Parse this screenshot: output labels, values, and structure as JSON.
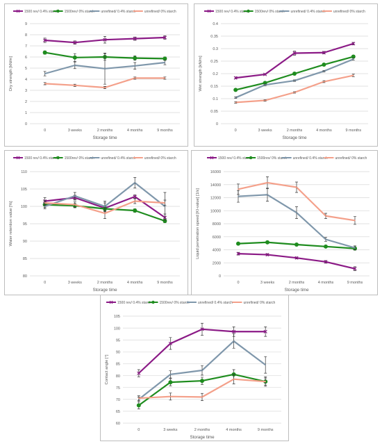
{
  "chart_data": [
    {
      "type": "line",
      "categories": [
        "0",
        "3 weeks",
        "2 months",
        "4 months",
        "9 months"
      ],
      "xlabel": "Storage time",
      "ylabel": "Dry strength [kN/m]",
      "ylim": [
        0,
        9
      ],
      "yticks": [
        "0",
        "1",
        "2",
        "3",
        "4",
        "5",
        "6",
        "7",
        "8",
        "9"
      ],
      "grid": true,
      "legend": "top",
      "series": [
        {
          "name": "1500 rev/ 0.4% starch",
          "color": "#8b1a86",
          "marker": "x",
          "values": [
            7.5,
            7.3,
            7.55,
            7.65,
            7.75
          ],
          "errors": [
            0.2,
            0.15,
            0.3,
            0.15,
            0.15
          ]
        },
        {
          "name": "1500rev/ 0% starch",
          "color": "#1e8c1e",
          "marker": "circle",
          "values": [
            6.4,
            5.95,
            6.0,
            5.9,
            5.85
          ],
          "errors": [
            0.15,
            0.35,
            0.3,
            0.2,
            0.15
          ]
        },
        {
          "name": "unrefined/ 0.4% starch",
          "color": "#7f97ab",
          "marker": "none",
          "values": [
            4.5,
            5.25,
            4.95,
            5.2,
            5.5
          ],
          "errors": [
            0.2,
            0.3,
            1.4,
            0.3,
            0.2
          ]
        },
        {
          "name": "unrefined/ 0% starch",
          "color": "#f4a08a",
          "marker": "none",
          "values": [
            3.6,
            3.45,
            3.25,
            4.1,
            4.1
          ],
          "errors": [
            0.1,
            0.1,
            0.1,
            0.1,
            0.1
          ]
        }
      ]
    },
    {
      "type": "line",
      "categories": [
        "0",
        "3 weeks",
        "2 months",
        "4 months",
        "9 months"
      ],
      "xlabel": "Storage time",
      "ylabel": "Wet strength [kN/m]",
      "ylim": [
        0,
        0.4
      ],
      "yticks": [
        "0",
        "0.05",
        "0.1",
        "0.15",
        "0.2",
        "0.25",
        "0.3",
        "0.35",
        "0.4"
      ],
      "grid": true,
      "legend": "top",
      "series": [
        {
          "name": "1500 rev/ 0.4% starch",
          "color": "#8b1a86",
          "marker": "x",
          "values": [
            0.183,
            0.197,
            0.282,
            0.284,
            0.32
          ],
          "errors": [
            0.004,
            0.003,
            0.008,
            0.005,
            0.005
          ]
        },
        {
          "name": "1500rev/ 0% starch",
          "color": "#1e8c1e",
          "marker": "circle",
          "values": [
            0.135,
            0.163,
            0.2,
            0.236,
            0.268
          ],
          "errors": [
            0.003,
            0.003,
            0.005,
            0.003,
            0.006
          ]
        },
        {
          "name": "unrefined/ 0.4% starch",
          "color": "#7f97ab",
          "marker": "none",
          "values": [
            0.104,
            0.155,
            0.172,
            0.21,
            0.258
          ],
          "errors": [
            0.003,
            0.003,
            0.003,
            0.003,
            0.004
          ]
        },
        {
          "name": "unrefined/ 0% starch",
          "color": "#f4a08a",
          "marker": "none",
          "values": [
            0.085,
            0.093,
            0.125,
            0.168,
            0.193
          ],
          "errors": [
            0.003,
            0.003,
            0.003,
            0.004,
            0.005
          ]
        }
      ]
    },
    {
      "type": "line",
      "categories": [
        "0",
        "3 weeks",
        "2 months",
        "4 months",
        "9 months"
      ],
      "xlabel": "Storage time",
      "ylabel": "Water retention value [%]",
      "ylim": [
        80,
        110
      ],
      "yticks": [
        "80",
        "85",
        "90",
        "95",
        "100",
        "105",
        "110"
      ],
      "grid": true,
      "legend": "top",
      "series": [
        {
          "name": "1500 rev/ 0.4% starch",
          "color": "#8b1a86",
          "marker": "x",
          "values": [
            101.5,
            102.5,
            99.5,
            102.8,
            96.8
          ],
          "errors": [
            1.0,
            0.7,
            1.5,
            0.5,
            1.0
          ]
        },
        {
          "name": "1500rev/ 0% starch",
          "color": "#1e8c1e",
          "marker": "circle",
          "values": [
            100.5,
            100.2,
            99.3,
            98.8,
            95.8
          ],
          "errors": [
            0.8,
            0.6,
            0.6,
            0.5,
            0.5
          ]
        },
        {
          "name": "unrefined/ 0.4% starch",
          "color": "#7f97ab",
          "marker": "none",
          "values": [
            100.0,
            103.0,
            100.0,
            106.8,
            100.0
          ],
          "errors": [
            0.7,
            1.0,
            1.5,
            1.5,
            4.0
          ]
        },
        {
          "name": "unrefined/ 0% starch",
          "color": "#f4a08a",
          "marker": "none",
          "values": [
            101.0,
            100.5,
            98.0,
            101.5,
            101.0
          ],
          "errors": [
            0.7,
            0.8,
            1.5,
            0.7,
            0.8
          ]
        }
      ]
    },
    {
      "type": "line",
      "categories": [
        "0",
        "3 weeks",
        "2 months",
        "4 months",
        "9 months"
      ],
      "xlabel": "Storage time",
      "ylabel": "Liquid penetration speed [Kl-value] [1/s]",
      "ylim": [
        0,
        16000
      ],
      "yticks": [
        "0",
        "2000",
        "4000",
        "6000",
        "8000",
        "10000",
        "12000",
        "14000",
        "16000"
      ],
      "grid": true,
      "legend": "top",
      "series": [
        {
          "name": "1500 rev/ 0.4% starch",
          "color": "#8b1a86",
          "marker": "x",
          "values": [
            3400,
            3250,
            2750,
            2150,
            1100
          ],
          "errors": [
            200,
            150,
            150,
            200,
            300
          ]
        },
        {
          "name": "1500rev/ 0% starch",
          "color": "#1e8c1e",
          "marker": "circle",
          "values": [
            4950,
            5150,
            4800,
            4500,
            4200
          ],
          "errors": [
            150,
            150,
            150,
            150,
            250
          ]
        },
        {
          "name": "unrefined/ 0.4% starch",
          "color": "#7f97ab",
          "marker": "none",
          "values": [
            12200,
            12450,
            9700,
            5600,
            4300
          ],
          "errors": [
            900,
            1000,
            900,
            300,
            300
          ]
        },
        {
          "name": "unrefined/ 0% starch",
          "color": "#f4a08a",
          "marker": "none",
          "values": [
            13300,
            14300,
            13600,
            9200,
            8500
          ],
          "errors": [
            800,
            900,
            800,
            400,
            600
          ]
        }
      ]
    },
    {
      "type": "line",
      "categories": [
        "0",
        "3 weeks",
        "2 months",
        "4 months",
        "9 months"
      ],
      "xlabel": "Storage time",
      "ylabel": "Contact angle [°]",
      "ylim": [
        60,
        105
      ],
      "yticks": [
        "60",
        "65",
        "70",
        "75",
        "80",
        "85",
        "90",
        "95",
        "100",
        "105"
      ],
      "grid": true,
      "legend": "top",
      "series": [
        {
          "name": "1500 rev/ 0.4% starch",
          "color": "#8b1a86",
          "marker": "x",
          "values": [
            81,
            93.5,
            99.5,
            98.5,
            98.5
          ],
          "errors": [
            1.5,
            2.5,
            2.5,
            2.0,
            2.0
          ]
        },
        {
          "name": "1500rev/ 0% starch",
          "color": "#1e8c1e",
          "marker": "circle",
          "values": [
            67.5,
            77.2,
            77.8,
            80.5,
            77.5
          ],
          "errors": [
            1.5,
            1.5,
            1.5,
            2.0,
            2.0
          ]
        },
        {
          "name": "unrefined/ 0.4% starch",
          "color": "#7f97ab",
          "marker": "none",
          "values": [
            70,
            80.5,
            82.2,
            94.5,
            84.5
          ],
          "errors": [
            1.0,
            1.5,
            2.0,
            3.0,
            3.5
          ]
        },
        {
          "name": "unrefined/ 0% starch",
          "color": "#f4a08a",
          "marker": "none",
          "values": [
            70.5,
            71.2,
            71.0,
            78.5,
            77.5
          ],
          "errors": [
            1.0,
            1.5,
            1.5,
            2.0,
            1.5
          ]
        }
      ]
    }
  ]
}
